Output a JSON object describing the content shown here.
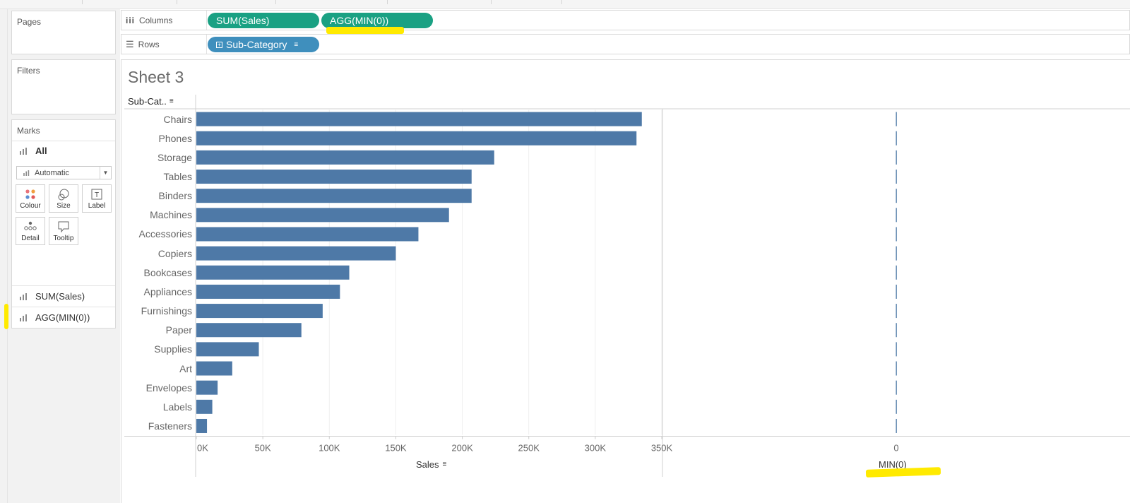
{
  "sheet": {
    "title": "Sheet 3"
  },
  "left_panel": {
    "pages_title": "Pages",
    "filters_title": "Filters",
    "marks": {
      "title": "Marks",
      "all_label": "All",
      "mark_type": "Automatic",
      "buttons": [
        "Colour",
        "Size",
        "Label",
        "Detail",
        "Tooltip"
      ],
      "measure_tabs": [
        "SUM(Sales)",
        "AGG(MIN(0))"
      ]
    }
  },
  "shelves": {
    "columns_label": "Columns",
    "columns_pills": [
      "SUM(Sales)",
      "AGG(MIN(0))"
    ],
    "rows_label": "Rows",
    "rows_pills": [
      "Sub-Category"
    ]
  },
  "chart_header": {
    "row_header": "Sub-Cat.."
  },
  "chart_data": {
    "type": "bar",
    "orientation": "horizontal",
    "title": "Sheet 3",
    "row_field": "Sub-Category",
    "categories": [
      "Chairs",
      "Phones",
      "Storage",
      "Tables",
      "Binders",
      "Machines",
      "Accessories",
      "Copiers",
      "Bookcases",
      "Appliances",
      "Furnishings",
      "Paper",
      "Supplies",
      "Art",
      "Envelopes",
      "Labels",
      "Fasteners"
    ],
    "series": [
      {
        "name": "Sales",
        "values": [
          335000,
          331000,
          224000,
          207000,
          207000,
          190000,
          167000,
          150000,
          115000,
          108000,
          95000,
          79000,
          47000,
          27000,
          16000,
          12000,
          8000
        ]
      },
      {
        "name": "MIN(0)",
        "values": [
          0,
          0,
          0,
          0,
          0,
          0,
          0,
          0,
          0,
          0,
          0,
          0,
          0,
          0,
          0,
          0,
          0
        ]
      }
    ],
    "axes": [
      {
        "title": "Sales",
        "min": 0,
        "max": 350000,
        "ticks": [
          "0K",
          "50K",
          "100K",
          "150K",
          "200K",
          "250K",
          "300K",
          "350K"
        ]
      },
      {
        "title": "MIN(0)",
        "ticks": [
          "0"
        ]
      }
    ],
    "bar_color": "#4e79a7"
  }
}
